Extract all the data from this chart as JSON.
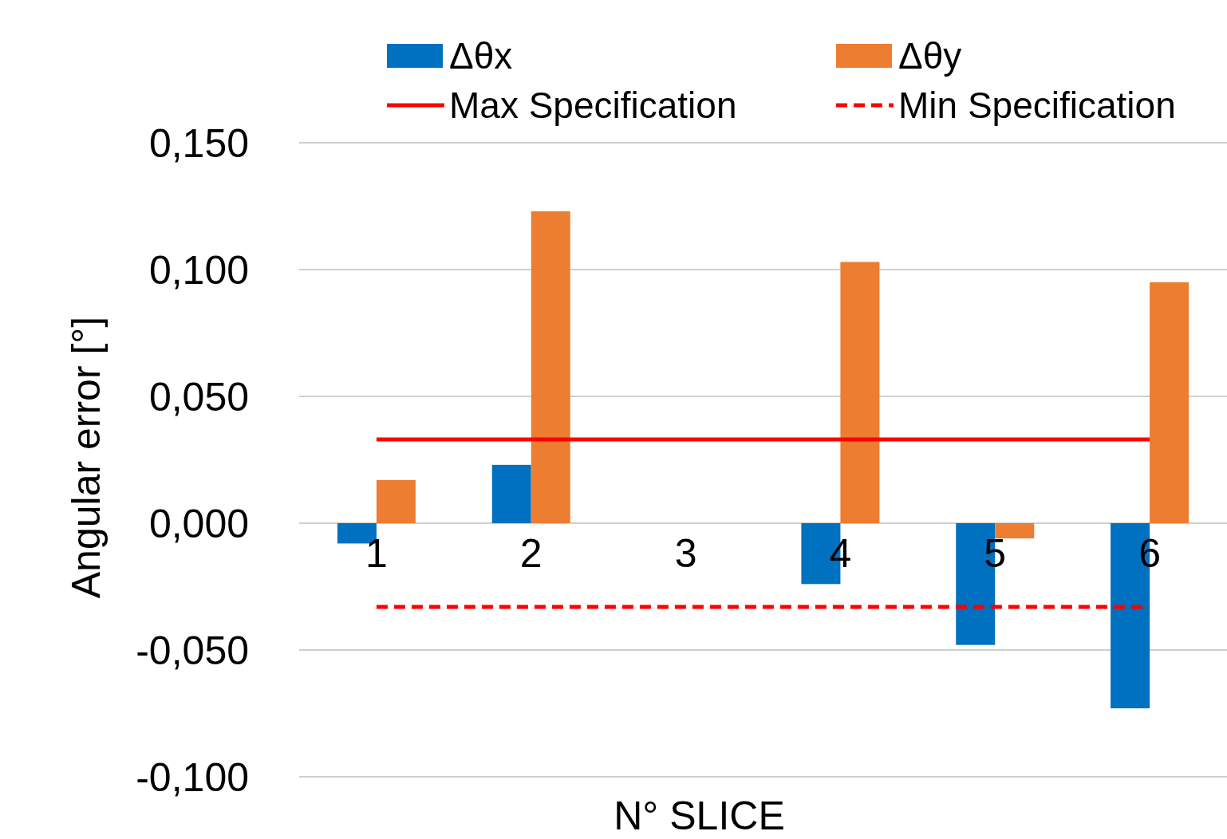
{
  "chart_data": {
    "type": "bar",
    "xlabel": "N° SLICE",
    "ylabel": "Angular error  [°]",
    "categories": [
      "1",
      "2",
      "3",
      "4",
      "5",
      "6"
    ],
    "series": [
      {
        "name": "Δθx",
        "color": "#0070c0",
        "values": [
          -0.008,
          0.023,
          0,
          -0.024,
          -0.048,
          -0.073
        ]
      },
      {
        "name": "Δθy",
        "color": "#ed7d31",
        "values": [
          0.017,
          0.123,
          0,
          0.103,
          -0.006,
          0.095
        ]
      },
      {
        "name": "Max Specification",
        "type": "line",
        "color": "#ff0000",
        "line_style": "solid",
        "values": [
          0.033,
          0.033,
          0.033,
          0.033,
          0.033,
          0.033
        ]
      },
      {
        "name": "Min Specification",
        "type": "line",
        "color": "#ff0000",
        "line_style": "dashed",
        "values": [
          -0.033,
          -0.033,
          -0.033,
          -0.033,
          -0.033,
          -0.033
        ]
      }
    ],
    "ylim": [
      -0.1,
      0.15
    ],
    "yticks": [
      {
        "value": -0.1,
        "label": "-0,100"
      },
      {
        "value": -0.05,
        "label": "-0,050"
      },
      {
        "value": 0,
        "label": "0,000"
      },
      {
        "value": 0.05,
        "label": "0,050"
      },
      {
        "value": 0.1,
        "label": "0,100"
      },
      {
        "value": 0.15,
        "label": "0,150"
      }
    ],
    "grid": "y",
    "legend": "top",
    "marker": "none"
  }
}
